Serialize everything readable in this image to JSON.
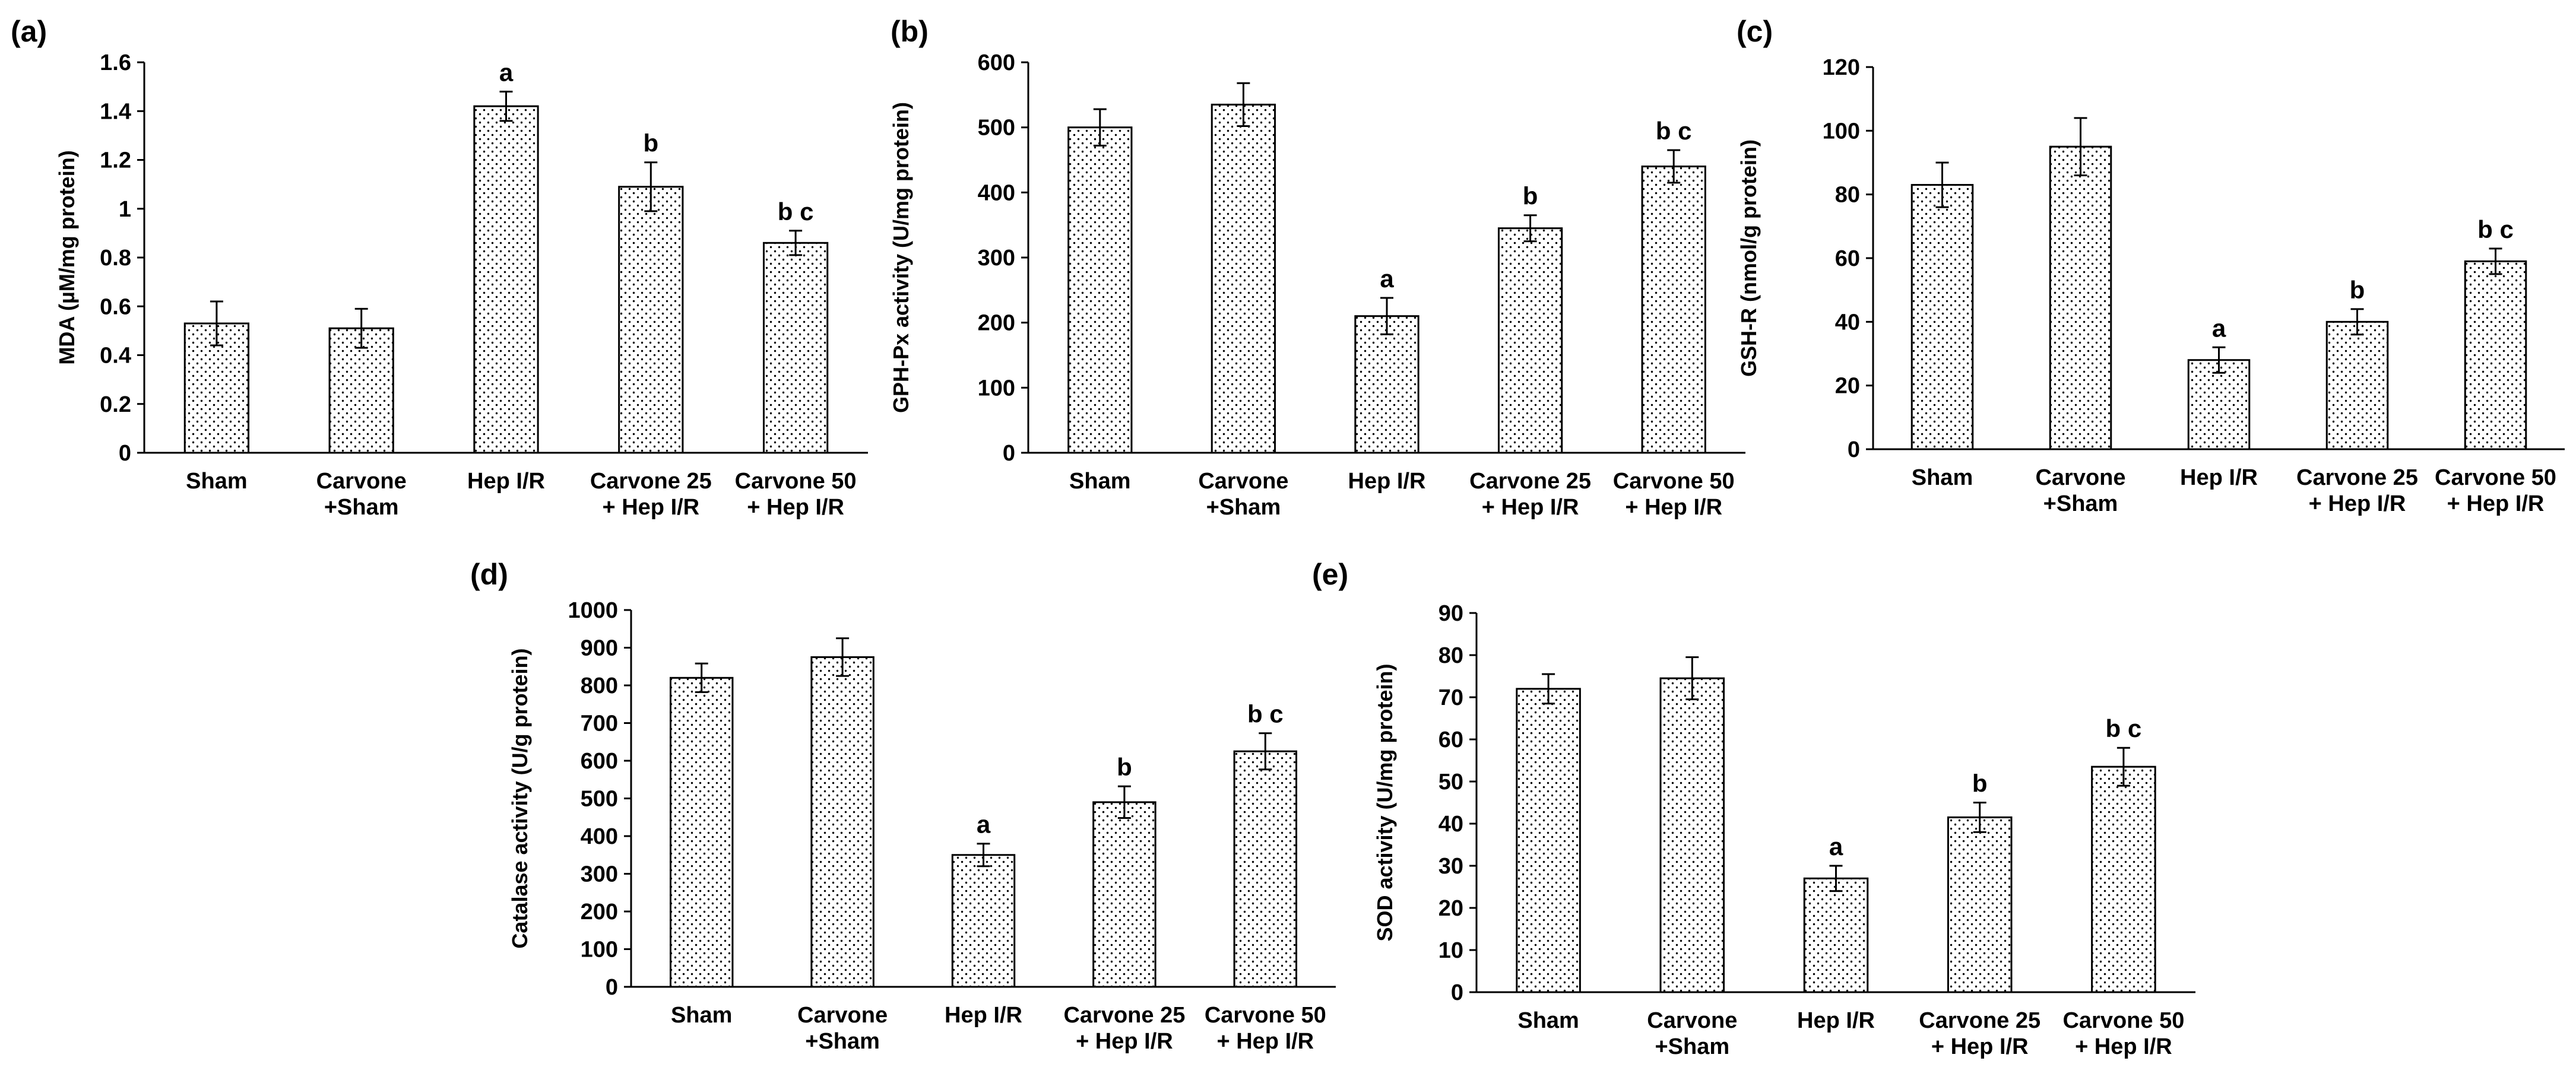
{
  "categories": [
    [
      "Sham"
    ],
    [
      "Carvone",
      "+Sham"
    ],
    [
      "Hep I/R"
    ],
    [
      "Carvone 25",
      "+ Hep I/R"
    ],
    [
      "Carvone 50",
      "+ Hep I/R"
    ]
  ],
  "chart_data": [
    {
      "type": "bar",
      "panel_label": "(a)",
      "ylabel": "MDA (µM/mg protein)",
      "ylim": [
        0,
        1.6
      ],
      "ytick_labels": [
        "0",
        "0.2",
        "0.4",
        "0.6",
        "0.8",
        "1",
        "1.2",
        "1.4",
        "1.6"
      ],
      "values": [
        0.53,
        0.51,
        1.42,
        1.09,
        0.86
      ],
      "errors": [
        0.09,
        0.08,
        0.06,
        0.1,
        0.05
      ],
      "significance": [
        "",
        "",
        "a",
        "b",
        "b c"
      ]
    },
    {
      "type": "bar",
      "panel_label": "(b)",
      "ylabel": "GPH-Px activity (U/mg protein)",
      "ylim": [
        0,
        600
      ],
      "ytick_labels": [
        "0",
        "100",
        "200",
        "300",
        "400",
        "500",
        "600"
      ],
      "values": [
        500,
        535,
        210,
        345,
        440
      ],
      "errors": [
        28,
        33,
        28,
        20,
        25
      ],
      "significance": [
        "",
        "",
        "a",
        "b",
        "b c"
      ]
    },
    {
      "type": "bar",
      "panel_label": "(c)",
      "ylabel": "GSH-R (nmol/g protein)",
      "ylim": [
        0,
        120
      ],
      "ytick_labels": [
        "0",
        "20",
        "40",
        "60",
        "80",
        "100",
        "120"
      ],
      "values": [
        83,
        95,
        28,
        40,
        59
      ],
      "errors": [
        7,
        9,
        4,
        4,
        4
      ],
      "significance": [
        "",
        "",
        "a",
        "b",
        "b c"
      ]
    },
    {
      "type": "bar",
      "panel_label": "(d)",
      "ylabel": "Catalase activity (U/g protein)",
      "ylim": [
        0,
        1000
      ],
      "ytick_labels": [
        "0",
        "100",
        "200",
        "300",
        "400",
        "500",
        "600",
        "700",
        "800",
        "900",
        "1000"
      ],
      "values": [
        820,
        875,
        350,
        490,
        625
      ],
      "errors": [
        38,
        50,
        30,
        42,
        48
      ],
      "significance": [
        "",
        "",
        "a",
        "b",
        "b c"
      ]
    },
    {
      "type": "bar",
      "panel_label": "(e)",
      "ylabel": "SOD activity (U/mg protein)",
      "ylim": [
        0,
        90
      ],
      "ytick_labels": [
        "0",
        "10",
        "20",
        "30",
        "40",
        "50",
        "60",
        "70",
        "80",
        "90"
      ],
      "values": [
        72,
        74.5,
        27,
        41.5,
        53.5
      ],
      "errors": [
        3.5,
        5,
        3,
        3.5,
        4.5
      ],
      "significance": [
        "",
        "",
        "a",
        "b",
        "b c"
      ]
    }
  ]
}
